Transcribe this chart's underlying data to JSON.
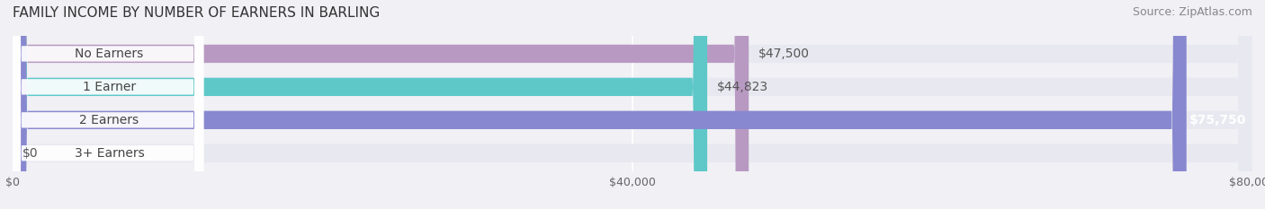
{
  "title": "FAMILY INCOME BY NUMBER OF EARNERS IN BARLING",
  "source": "Source: ZipAtlas.com",
  "categories": [
    "No Earners",
    "1 Earner",
    "2 Earners",
    "3+ Earners"
  ],
  "values": [
    47500,
    44823,
    75750,
    0
  ],
  "bar_colors": [
    "#b899c2",
    "#5ec8c8",
    "#8888d0",
    "#f4a0b0"
  ],
  "label_colors": [
    "#b899c2",
    "#5ec8c8",
    "#8888d0",
    "#f4a0b0"
  ],
  "value_labels": [
    "$47,500",
    "$44,823",
    "$75,750",
    "$0"
  ],
  "xlim": [
    0,
    80000
  ],
  "xticks": [
    0,
    40000,
    80000
  ],
  "xticklabels": [
    "$0",
    "$40,000",
    "$80,000"
  ],
  "background_color": "#f0f0f5",
  "bar_background": "#e8e8f0",
  "title_fontsize": 11,
  "source_fontsize": 9,
  "label_fontsize": 10,
  "value_fontsize": 10,
  "bar_height": 0.55,
  "bar_gap": 0.15
}
